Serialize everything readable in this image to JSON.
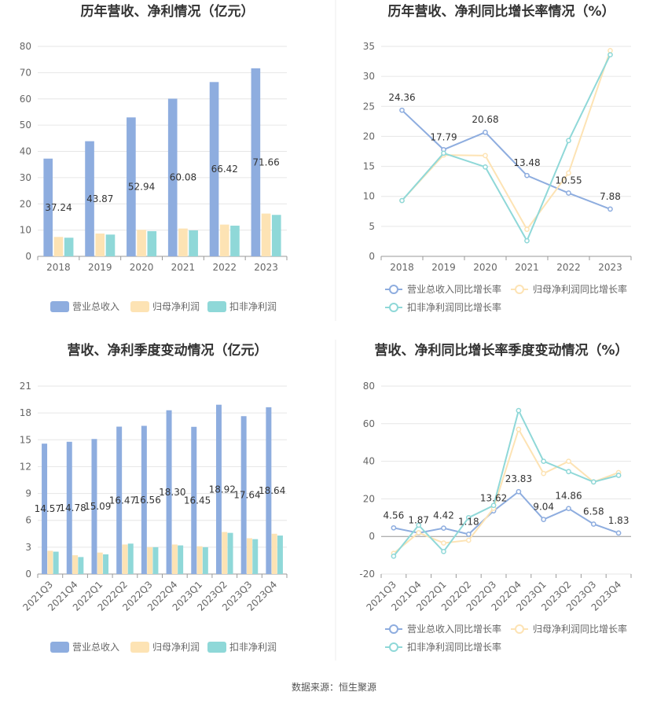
{
  "source_text": "数据来源：恒生聚源",
  "colors": {
    "revenue": "#8eaddf",
    "net_profit": "#fde3b4",
    "deducted": "#8fd8d8",
    "revenue_line": "#8eaddf",
    "net_profit_line": "#fde3b4",
    "deducted_line": "#8fd8d8",
    "grid": "#e6e6e6",
    "axis": "#999999",
    "text": "#666666",
    "title": "#333333"
  },
  "chart_data": [
    {
      "id": "annual-amount",
      "type": "bar",
      "title": "历年营收、净利情况（亿元）",
      "categories": [
        "2018",
        "2019",
        "2020",
        "2021",
        "2022",
        "2023"
      ],
      "series": [
        {
          "name": "营业总收入",
          "values": [
            37.24,
            43.87,
            52.94,
            60.08,
            66.42,
            71.66
          ],
          "labels": [
            "37.24",
            "43.87",
            "52.94",
            "60.08",
            "66.42",
            "71.66"
          ]
        },
        {
          "name": "归母净利润",
          "values": [
            7.4,
            8.7,
            10.1,
            10.6,
            12.1,
            16.3
          ]
        },
        {
          "name": "扣非净利润",
          "values": [
            7.1,
            8.3,
            9.6,
            9.9,
            11.7,
            15.8
          ]
        }
      ],
      "ylim": [
        0,
        80
      ],
      "yticks": [
        0,
        10,
        20,
        30,
        40,
        50,
        60,
        70,
        80
      ],
      "xlabel": "",
      "ylabel": "",
      "grid": true,
      "legend": "bottom"
    },
    {
      "id": "annual-growth",
      "type": "line",
      "title": "历年营收、净利同比增长率情况（%）",
      "categories": [
        "2018",
        "2019",
        "2020",
        "2021",
        "2022",
        "2023"
      ],
      "series": [
        {
          "name": "营业总收入同比增长率",
          "values": [
            24.36,
            17.79,
            20.68,
            13.48,
            10.55,
            7.88
          ],
          "labels": [
            "24.36",
            "17.79",
            "20.68",
            "13.48",
            "10.55",
            "7.88"
          ]
        },
        {
          "name": "归母净利润同比增长率",
          "values": [
            9.3,
            16.9,
            16.8,
            4.5,
            13.9,
            34.3
          ]
        },
        {
          "name": "扣非净利润同比增长率",
          "values": [
            9.3,
            17.2,
            14.9,
            2.6,
            19.3,
            33.6
          ]
        }
      ],
      "ylim": [
        0,
        35
      ],
      "yticks": [
        0,
        5,
        10,
        15,
        20,
        25,
        30,
        35
      ],
      "xlabel": "",
      "ylabel": "",
      "grid": true,
      "legend": "bottom"
    },
    {
      "id": "quarterly-amount",
      "type": "bar",
      "title": "营收、净利季度变动情况（亿元）",
      "categories": [
        "2021Q3",
        "2021Q4",
        "2022Q1",
        "2022Q2",
        "2022Q3",
        "2022Q4",
        "2023Q1",
        "2023Q2",
        "2023Q3",
        "2023Q4"
      ],
      "series": [
        {
          "name": "营业总收入",
          "values": [
            14.57,
            14.78,
            15.09,
            16.47,
            16.56,
            18.3,
            16.45,
            18.92,
            17.64,
            18.64
          ],
          "labels": [
            "14.57",
            "14.78",
            "15.09",
            "16.47",
            "16.56",
            "18.30",
            "16.45",
            "18.92",
            "17.64",
            "18.64"
          ]
        },
        {
          "name": "归母净利润",
          "values": [
            2.6,
            2.1,
            2.4,
            3.3,
            3.0,
            3.3,
            3.1,
            4.7,
            4.0,
            4.5
          ]
        },
        {
          "name": "扣非净利润",
          "values": [
            2.5,
            1.9,
            2.2,
            3.4,
            3.0,
            3.2,
            3.0,
            4.6,
            3.9,
            4.3
          ]
        }
      ],
      "ylim": [
        0,
        21
      ],
      "yticks": [
        0,
        3,
        6,
        9,
        12,
        15,
        18,
        21
      ],
      "xlabel": "",
      "ylabel": "",
      "grid": true,
      "legend": "bottom"
    },
    {
      "id": "quarterly-growth",
      "type": "line",
      "title": "营收、净利同比增长率季度变动情况（%）",
      "categories": [
        "2021Q3",
        "2021Q4",
        "2022Q1",
        "2022Q2",
        "2022Q3",
        "2022Q4",
        "2023Q1",
        "2023Q2",
        "2023Q3",
        "2023Q4"
      ],
      "series": [
        {
          "name": "营业总收入同比增长率",
          "values": [
            4.56,
            1.87,
            4.42,
            1.18,
            13.62,
            23.83,
            9.04,
            14.86,
            6.58,
            1.83
          ],
          "labels": [
            "4.56",
            "1.87",
            "4.42",
            "1.18",
            "13.62",
            "23.83",
            "9.04",
            "14.86",
            "6.58",
            "1.83"
          ]
        },
        {
          "name": "归母净利润同比增长率",
          "values": [
            -9.0,
            2.0,
            -3.5,
            -2.0,
            15.0,
            57.0,
            33.5,
            40.0,
            29.0,
            34.0
          ]
        },
        {
          "name": "扣非净利润同比增长率",
          "values": [
            -10.5,
            6.0,
            -8.0,
            10.0,
            16.5,
            67.0,
            40.0,
            34.5,
            29.0,
            32.5
          ]
        }
      ],
      "ylim": [
        -20,
        80
      ],
      "yticks": [
        -20,
        0,
        20,
        40,
        60,
        80
      ],
      "xlabel": "",
      "ylabel": "",
      "grid": true,
      "legend": "bottom"
    }
  ]
}
